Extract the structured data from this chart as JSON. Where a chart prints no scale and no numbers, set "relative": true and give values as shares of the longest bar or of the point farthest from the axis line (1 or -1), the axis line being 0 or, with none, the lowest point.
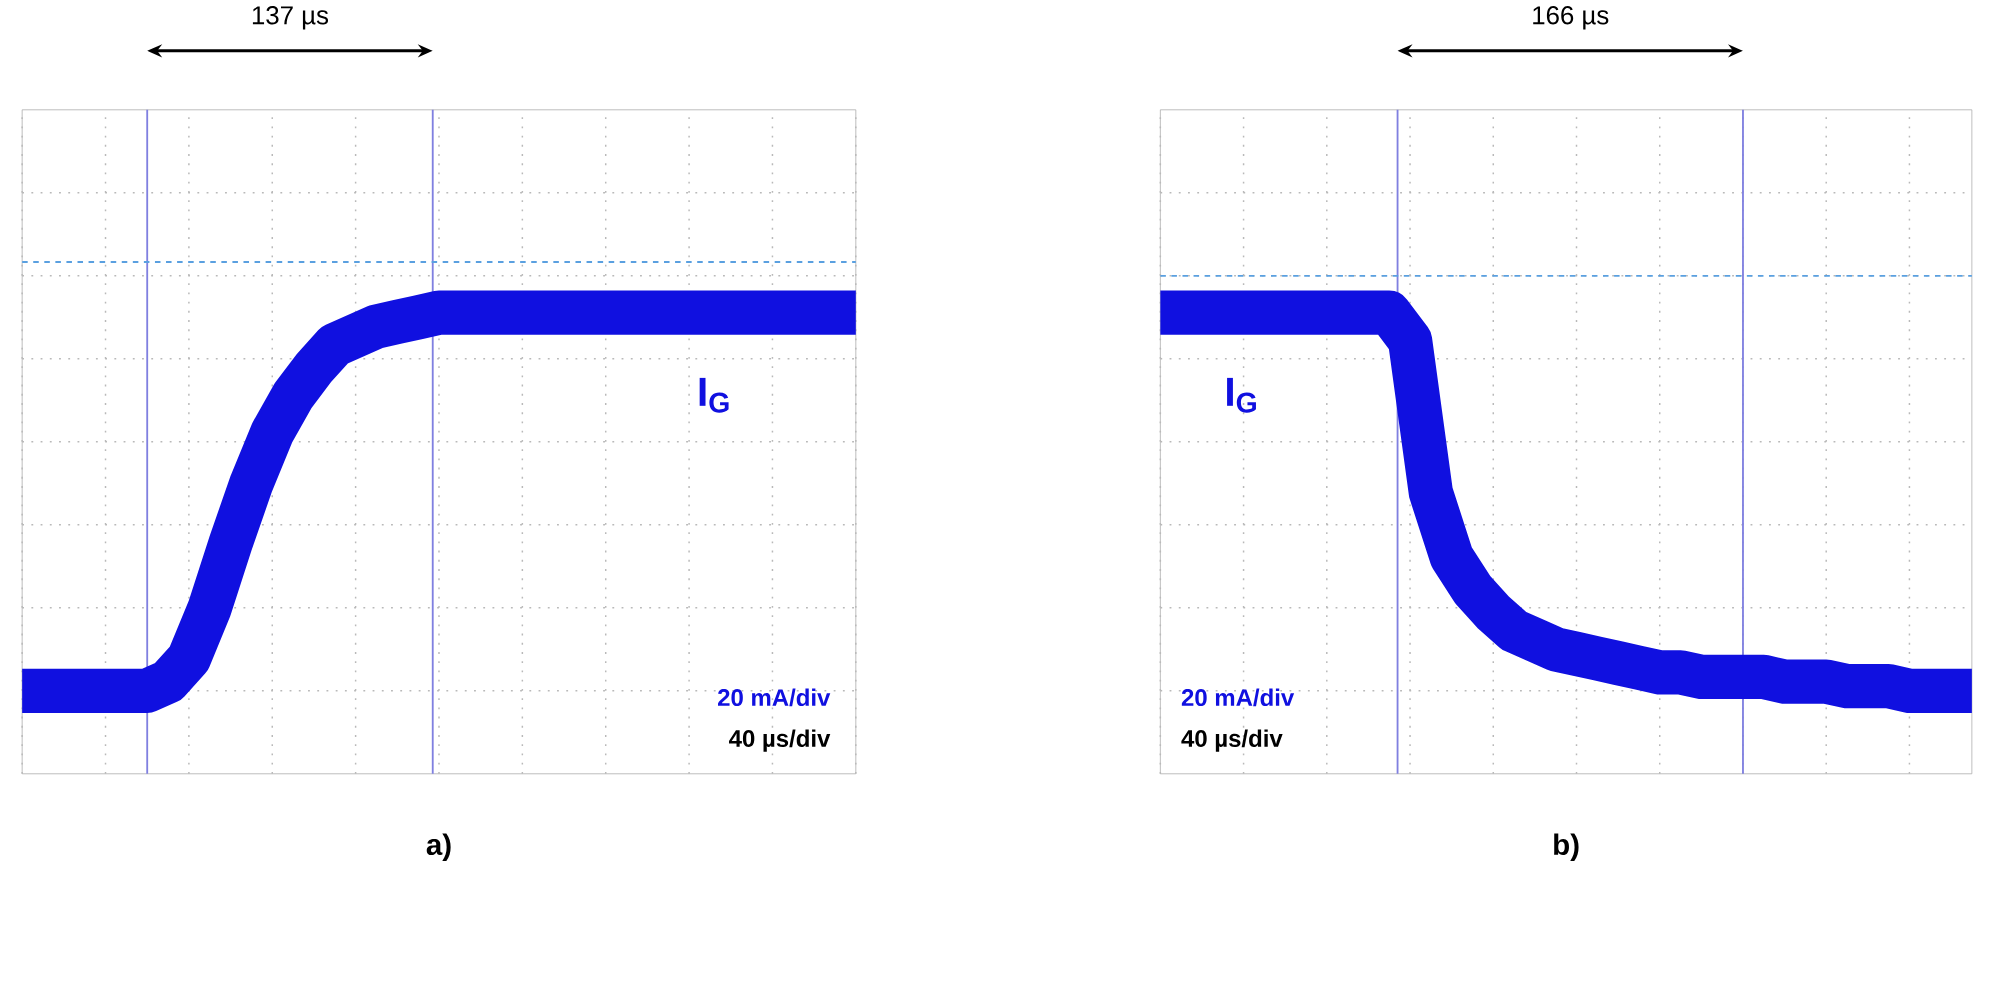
{
  "chart_data": [
    {
      "type": "line",
      "title": "a)",
      "annotations": [
        "137 µs",
        "**I**$_{G}$",
        "20 mA/div",
        "40 µs/div"
      ],
      "relative": true,
      "tick_labels": false,
      "grid": true,
      "categories": [
        null,
        null,
        null,
        null,
        null,
        null,
        null,
        null,
        null,
        null,
        null,
        null,
        null,
        null,
        null,
        null,
        null,
        null,
        null,
        null,
        null,
        null,
        null,
        null,
        null,
        null,
        null,
        null,
        null,
        null,
        null,
        null,
        null,
        null,
        null,
        null,
        null,
        null,
        null,
        null,
        null
      ],
      "ref_lines": [
        {
          "axis": "y",
          "value": 1.11,
          "color": "#5aa0e0",
          "line_style": "dashed"
        }
      ],
      "series": [
        {
          "color": "#1010e0",
          "values": [
            0.18,
            0.18,
            0.18,
            0.18,
            0.18,
            0.18,
            0.18,
            0.2,
            0.25,
            0.36,
            0.5,
            0.63,
            0.74,
            0.82,
            0.88,
            0.93,
            0.95,
            0.97,
            0.98,
            0.99,
            1,
            1,
            1,
            1,
            1,
            1,
            1,
            1,
            1,
            1,
            1,
            1,
            1,
            1,
            1,
            1,
            1,
            1,
            1,
            1,
            1
          ]
        }
      ]
    },
    {
      "type": "line",
      "title": "b)",
      "annotations": [
        "166 µs",
        "**I**$_{G}$",
        "20 mA/div",
        "40 µs/div"
      ],
      "relative": true,
      "tick_labels": false,
      "grid": true,
      "categories": [
        null,
        null,
        null,
        null,
        null,
        null,
        null,
        null,
        null,
        null,
        null,
        null,
        null,
        null,
        null,
        null,
        null,
        null,
        null,
        null,
        null,
        null,
        null,
        null,
        null,
        null,
        null,
        null,
        null,
        null,
        null,
        null,
        null,
        null,
        null,
        null,
        null,
        null,
        null,
        null
      ],
      "ref_lines": [
        {
          "axis": "y",
          "value": 1.08,
          "color": "#5aa0e0",
          "line_style": "dashed"
        }
      ],
      "series": [
        {
          "color": "#1010e0",
          "values": [
            1,
            1,
            1,
            1,
            1,
            1,
            1,
            1,
            1,
            1,
            1,
            1,
            0.94,
            0.61,
            0.47,
            0.4,
            0.35,
            0.31,
            0.29,
            0.27,
            0.26,
            0.25,
            0.24,
            0.23,
            0.22,
            0.22,
            0.21,
            0.21,
            0.21,
            0.21,
            0.2,
            0.2,
            0.2,
            0.19,
            0.19,
            0.19,
            0.18,
            0.18,
            0.18,
            0.18
          ]
        }
      ]
    }
  ]
}
